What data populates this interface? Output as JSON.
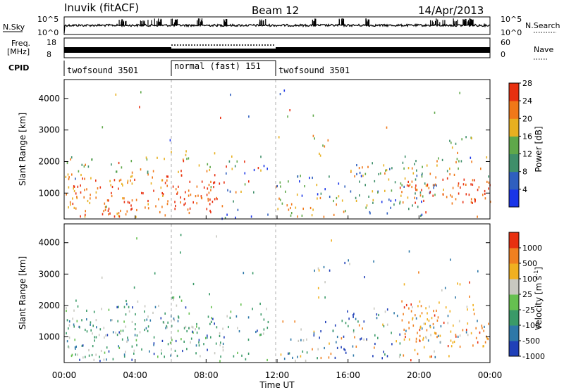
{
  "header": {
    "station": "Inuvik  (fitACF)",
    "beam": "Beam 12",
    "date": "14/Apr/2013"
  },
  "chart_data": [
    {
      "type": "line",
      "title": "",
      "left_label": "N.Sky",
      "right_label": "N.Search",
      "yticks_left": [
        "10^5",
        "10^0"
      ],
      "yticks_right": [
        "10^5",
        "10^0"
      ]
    },
    {
      "type": "line",
      "left_label_line1": "Freq.",
      "left_label_line2": "[MHz]",
      "right_label": "Nave",
      "yticks_left": [
        "18",
        "8"
      ],
      "yticks_right": [
        "60",
        "0"
      ]
    },
    {
      "type": "table",
      "left_label": "CPID",
      "segments": [
        {
          "label": "twofsound 3501",
          "start_hour": 0,
          "end_hour": 6
        },
        {
          "label": "normal (fast) 151",
          "start_hour": 6,
          "end_hour": 12
        },
        {
          "label": "twofsound 3501",
          "start_hour": 12,
          "end_hour": 24
        }
      ]
    },
    {
      "type": "heatmap",
      "ylabel": "Slant Range [km]",
      "yticks": [
        1000,
        2000,
        3000,
        4000
      ],
      "ylim": [
        180,
        4600
      ],
      "colorbar_label": "Power [dB]",
      "colorbar_ticks": [
        "4",
        "8",
        "12",
        "16",
        "20",
        "24",
        "28"
      ],
      "colorbar_colors": [
        "#1a35e8",
        "#2f5fbf",
        "#3f8f6a",
        "#5fa84a",
        "#e8b020",
        "#f07818",
        "#e83010"
      ]
    },
    {
      "type": "heatmap",
      "ylabel": "Slant Range [km]",
      "yticks": [
        1000,
        2000,
        3000,
        4000
      ],
      "ylim": [
        180,
        4600
      ],
      "colorbar_label": "Velocity  [m s",
      "colorbar_label_sup": "-1",
      "colorbar_label_end": "]",
      "colorbar_ticks": [
        "1000",
        "500",
        "100",
        "25",
        "-25",
        "-100",
        "-500",
        "-1000"
      ],
      "colorbar_colors": [
        "#2040b8",
        "#2e78a8",
        "#3a9a68",
        "#66c050",
        "#c8c8c0",
        "#f0b020",
        "#f08020",
        "#e83010"
      ]
    }
  ],
  "x_axis": {
    "label": "Time UT",
    "ticks": [
      "00:00",
      "04:00",
      "08:00",
      "12:00",
      "16:00",
      "20:00",
      "00:00"
    ]
  }
}
